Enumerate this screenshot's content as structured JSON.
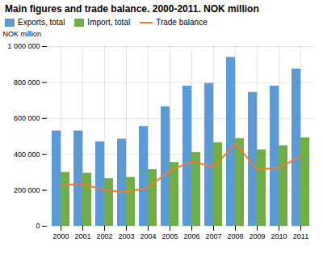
{
  "chart_data": {
    "type": "bar",
    "title": "Main figures and trade balance. 2000-2011. NOK million",
    "ylabel": "NOK million",
    "categories": [
      "2000",
      "2001",
      "2002",
      "2003",
      "2004",
      "2005",
      "2006",
      "2007",
      "2008",
      "2009",
      "2010",
      "2011"
    ],
    "series": [
      {
        "name": "Exports, total",
        "color": "#5b9bd5",
        "values": [
          530000,
          530000,
          470000,
          485000,
          555000,
          665000,
          780000,
          795000,
          940000,
          745000,
          780000,
          875000
        ]
      },
      {
        "name": "Import, total",
        "color": "#70ad47",
        "values": [
          300000,
          295000,
          265000,
          272000,
          315000,
          355000,
          410000,
          465000,
          488000,
          425000,
          448000,
          492000
        ]
      },
      {
        "name": "Trade balance",
        "color": "#ed7d31",
        "type": "line",
        "values": [
          230000,
          235000,
          200000,
          190000,
          215000,
          310000,
          360000,
          330000,
          460000,
          315000,
          325000,
          390000
        ]
      }
    ],
    "ylim": [
      0,
      1000000
    ],
    "yticks": [
      0,
      {
        "value": 200000,
        "label": "200 000"
      },
      {
        "value": 400000,
        "label": "400 000"
      },
      {
        "value": 600000,
        "label": "600 000"
      },
      {
        "value": 800000,
        "label": "800 000"
      },
      {
        "value": 1000000,
        "label": "1 000 000"
      }
    ],
    "grid": true,
    "legend": "upper left"
  }
}
